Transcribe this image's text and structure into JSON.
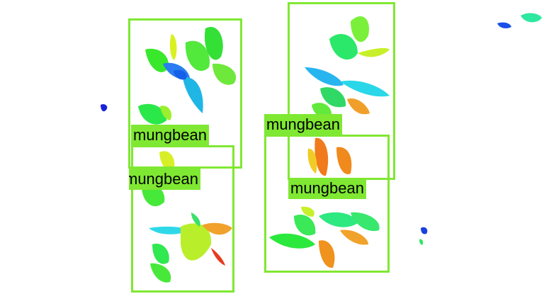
{
  "detections": [
    {
      "label": "mungbean"
    },
    {
      "label": "mungbean"
    },
    {
      "label": "mungbean"
    },
    {
      "label": "mungbean"
    }
  ],
  "colors": {
    "box": "#7fe832",
    "label_text": "#000000"
  }
}
